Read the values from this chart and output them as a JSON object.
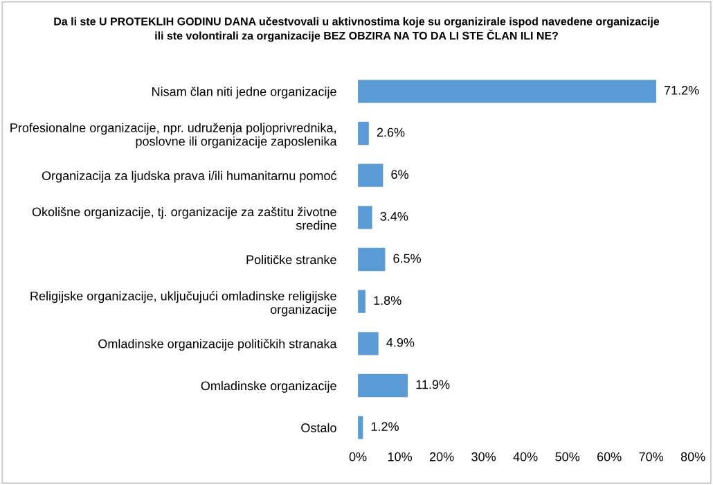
{
  "chart_data": {
    "type": "bar",
    "orientation": "horizontal",
    "title": "Da li ste U PROTEKLIH GODINU DANA učestvovali u aktivnostima koje su organizirale ispod navedene organizacije\nili ste volontirali za organizacije BEZ OBZIRA NA TO DA LI STE ČLAN ILI NE?",
    "categories": [
      "Nisam član niti jedne organizacije",
      "Profesionalne organizacije, npr. udruženja poljoprivrednika,\nposlovne ili organizacije zaposlenika",
      "Organizacija za ljudska prava i/ili humanitarnu pomoć",
      "Okolišne organizacije, tj. organizacije za zaštitu životne\nsredine",
      "Političke stranke",
      "Religijske organizacije, uključujući omladinske religijske\norganizacije",
      "Omladinske organizacije političkih stranaka",
      "Omladinske organizacije",
      "Ostalo"
    ],
    "values": [
      71.2,
      2.6,
      6,
      3.4,
      6.5,
      1.8,
      4.9,
      11.9,
      1.2
    ],
    "value_labels": [
      "71.2%",
      "2.6%",
      "6%",
      "3.4%",
      "6.5%",
      "1.8%",
      "4.9%",
      "11.9%",
      "1.2%"
    ],
    "color": "#5b9bd5",
    "xlim": [
      0,
      80
    ],
    "xticks": [
      {
        "value": 0,
        "label": "0%"
      },
      {
        "value": 10,
        "label": "10%"
      },
      {
        "value": 20,
        "label": "20%"
      },
      {
        "value": 30,
        "label": "30%"
      },
      {
        "value": 40,
        "label": "40%"
      },
      {
        "value": 50,
        "label": "50%"
      },
      {
        "value": 60,
        "label": "60%"
      },
      {
        "value": 70,
        "label": "70%"
      },
      {
        "value": 80,
        "label": "80%"
      }
    ],
    "grid": false
  }
}
